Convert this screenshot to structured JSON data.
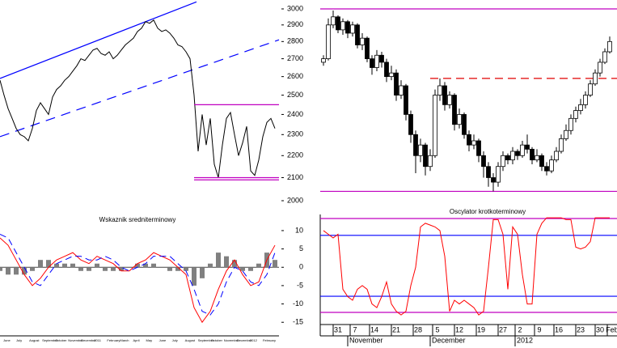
{
  "chart_data": [
    {
      "type": "line",
      "log_scale": true,
      "ylim": [
        2000,
        3000
      ],
      "yticks": [
        3000,
        2900,
        2800,
        2700,
        2600,
        2500,
        2400,
        2300,
        2200,
        2100,
        2000
      ],
      "color": "#000000",
      "values": [
        2580,
        2500,
        2430,
        2380,
        2330,
        2300,
        2290,
        2270,
        2330,
        2420,
        2460,
        2430,
        2400,
        2490,
        2530,
        2550,
        2580,
        2600,
        2630,
        2660,
        2700,
        2690,
        2720,
        2750,
        2760,
        2730,
        2720,
        2740,
        2700,
        2720,
        2750,
        2780,
        2800,
        2820,
        2860,
        2880,
        2920,
        2910,
        2930,
        2880,
        2860,
        2870,
        2850,
        2820,
        2780,
        2770,
        2740,
        2700,
        2500,
        2220,
        2400,
        2250,
        2380,
        2160,
        2100,
        2250,
        2380,
        2410,
        2300,
        2200,
        2260,
        2340,
        2130,
        2110,
        2180,
        2290,
        2360,
        2380,
        2330
      ],
      "trend_lines": [
        {
          "x": [
            0,
            48.6
          ],
          "values": [
            2590,
            3045
          ],
          "color": "#0000ff",
          "dash": false
        },
        {
          "x": [
            0,
            69
          ],
          "values": [
            2290,
            2810
          ],
          "color": "#0000ff",
          "dash": true
        }
      ],
      "levels": [
        {
          "value": 2450,
          "from": 48,
          "color": "#c000c0"
        },
        {
          "value": 2100,
          "from": 48,
          "color": "#c000c0"
        },
        {
          "value": 2090,
          "from": 48,
          "color": "#c000c0"
        }
      ]
    },
    {
      "type": "line",
      "title": "Wskaznik sredniterminowy",
      "ylim": [
        -17.6,
        14.4
      ],
      "yticks": [
        10,
        5,
        0,
        -5,
        -10,
        -15
      ],
      "month_labels": [
        "June",
        "July",
        "August",
        "September",
        "October",
        "November",
        "December",
        "2011",
        "February",
        "March",
        "April",
        "May",
        "June",
        "July",
        "August",
        "September",
        "October",
        "November",
        "December",
        "2012",
        "February"
      ],
      "series": [
        {
          "color": "#808080",
          "style": "bar",
          "values": [
            -1,
            -2,
            -2,
            -2,
            -1,
            2,
            2,
            1,
            1,
            1,
            -1,
            -1,
            1,
            -1,
            -1,
            -1,
            0,
            1,
            1,
            1,
            0,
            -1,
            -1,
            -1,
            -5,
            -3,
            1,
            4,
            3,
            2,
            -1,
            -1,
            1,
            4,
            2
          ]
        },
        {
          "color": "#ff0000",
          "style": "line",
          "values": [
            8,
            6,
            2,
            -2,
            -5,
            -3,
            0,
            2,
            3,
            4,
            2,
            1,
            3,
            2,
            1,
            -1,
            -1,
            1,
            2,
            4,
            3,
            2,
            0,
            -2,
            -11,
            -15,
            -12,
            -6,
            -1,
            2,
            -2,
            -5,
            -4,
            2,
            6
          ]
        },
        {
          "color": "#0000ff",
          "style": "dash",
          "values": [
            9,
            8,
            4,
            0,
            -4,
            -5,
            -2,
            1,
            2,
            3,
            3,
            2,
            2,
            3,
            2,
            0,
            -1,
            0,
            1,
            3,
            3,
            3,
            1,
            -1,
            -6,
            -12,
            -13,
            -10,
            -4,
            0,
            -1,
            -4,
            -5,
            -2,
            4
          ]
        }
      ]
    },
    {
      "type": "candlestick",
      "log_scale": true,
      "ylim": [
        2000,
        3000
      ],
      "open": [
        2680,
        2700,
        2900,
        2950,
        2870,
        2920,
        2850,
        2900,
        2780,
        2820,
        2700,
        2650,
        2720,
        2680,
        2600,
        2620,
        2500,
        2550,
        2400,
        2300,
        2200,
        2250,
        2150,
        2200,
        2500,
        2550,
        2450,
        2500,
        2350,
        2400,
        2300,
        2250,
        2270,
        2200,
        2150,
        2100,
        2080,
        2150,
        2200,
        2180,
        2220,
        2200,
        2250,
        2230,
        2180,
        2200,
        2150,
        2130,
        2180,
        2220,
        2280,
        2320,
        2380,
        2420,
        2450,
        2500,
        2560,
        2620,
        2680,
        2740
      ],
      "high": [
        2720,
        2940,
        2990,
        2960,
        2940,
        2930,
        2920,
        2910,
        2850,
        2830,
        2720,
        2750,
        2740,
        2700,
        2660,
        2640,
        2580,
        2560,
        2420,
        2320,
        2280,
        2260,
        2230,
        2530,
        2590,
        2570,
        2520,
        2510,
        2430,
        2410,
        2320,
        2300,
        2280,
        2220,
        2170,
        2120,
        2170,
        2220,
        2210,
        2240,
        2230,
        2270,
        2300,
        2240,
        2230,
        2210,
        2170,
        2200,
        2240,
        2300,
        2350,
        2400,
        2440,
        2480,
        2520,
        2580,
        2640,
        2700,
        2760,
        2830
      ],
      "low": [
        2660,
        2690,
        2880,
        2850,
        2840,
        2820,
        2830,
        2760,
        2750,
        2680,
        2610,
        2630,
        2650,
        2570,
        2580,
        2470,
        2480,
        2370,
        2260,
        2120,
        2170,
        2110,
        2130,
        2190,
        2470,
        2420,
        2430,
        2320,
        2330,
        2280,
        2220,
        2230,
        2170,
        2100,
        2060,
        2040,
        2060,
        2130,
        2160,
        2160,
        2180,
        2190,
        2210,
        2160,
        2170,
        2130,
        2110,
        2120,
        2170,
        2210,
        2270,
        2300,
        2360,
        2400,
        2430,
        2490,
        2550,
        2600,
        2670,
        2730
      ],
      "close": [
        2700,
        2900,
        2950,
        2870,
        2920,
        2850,
        2900,
        2780,
        2820,
        2700,
        2650,
        2720,
        2680,
        2600,
        2620,
        2500,
        2550,
        2400,
        2300,
        2200,
        2250,
        2150,
        2200,
        2500,
        2550,
        2450,
        2500,
        2350,
        2400,
        2300,
        2250,
        2270,
        2200,
        2150,
        2100,
        2080,
        2150,
        2200,
        2180,
        2220,
        2200,
        2250,
        2230,
        2180,
        2200,
        2150,
        2130,
        2180,
        2220,
        2280,
        2320,
        2380,
        2420,
        2450,
        2500,
        2560,
        2620,
        2680,
        2740,
        2800
      ],
      "levels": [
        {
          "value": 3000,
          "from": -1,
          "color": "#c000c0"
        },
        {
          "value": 2040,
          "from": -1,
          "color": "#c000c0"
        },
        {
          "value": 2590,
          "from": 22,
          "color": "#e00000",
          "dash": true
        }
      ]
    },
    {
      "type": "line",
      "title": "Oscylator krotkoterminowy",
      "ylim": [
        -17.6,
        14.4
      ],
      "xticks": [
        {
          "value": 3,
          "label": "31"
        },
        {
          "value": 6.5,
          "label": "7"
        },
        {
          "value": 10.5,
          "label": "14"
        },
        {
          "value": 15,
          "label": "21"
        },
        {
          "value": 19.5,
          "label": "28"
        },
        {
          "value": 23.5,
          "label": "5"
        },
        {
          "value": 28,
          "label": "12"
        },
        {
          "value": 32.5,
          "label": "19"
        },
        {
          "value": 37,
          "label": "27"
        },
        {
          "value": 40.5,
          "label": "2"
        },
        {
          "value": 44.5,
          "label": "9"
        },
        {
          "value": 48.5,
          "label": "16"
        },
        {
          "value": 53,
          "label": "23"
        },
        {
          "value": 57,
          "label": "30"
        },
        {
          "value": 59.5,
          "label": "Feb"
        }
      ],
      "month_labels": [
        {
          "value": 6,
          "label": "November"
        },
        {
          "value": 23,
          "label": "December"
        },
        {
          "value": 40.5,
          "label": "2012"
        }
      ],
      "series": [
        {
          "color": "#ff0000",
          "style": "line",
          "values": [
            10,
            9,
            8,
            9,
            -6,
            -8,
            -9,
            -6,
            -5,
            -6,
            -10,
            -11,
            -8,
            -4,
            -10,
            -12,
            -13,
            -12,
            -5,
            0,
            11,
            12,
            11.5,
            11,
            10,
            3,
            -12,
            -9,
            -10,
            -9,
            -10,
            -11,
            -13,
            -12,
            0,
            13,
            13,
            9,
            -6,
            11,
            9,
            -2,
            -10,
            -10,
            9,
            12,
            13.5,
            13.5,
            13.5,
            13.5,
            13,
            13,
            5.5,
            5,
            5.5,
            7,
            13.5,
            13.5,
            13.5,
            13.5
          ]
        }
      ],
      "levels": [
        {
          "value": 13.3,
          "from": -1,
          "color": "#c000c0"
        },
        {
          "value": 8.7,
          "from": -1,
          "color": "#0000ff"
        },
        {
          "value": -7.9,
          "from": -1,
          "color": "#0000ff"
        },
        {
          "value": -12.3,
          "from": -1,
          "color": "#c000c0"
        }
      ]
    }
  ]
}
